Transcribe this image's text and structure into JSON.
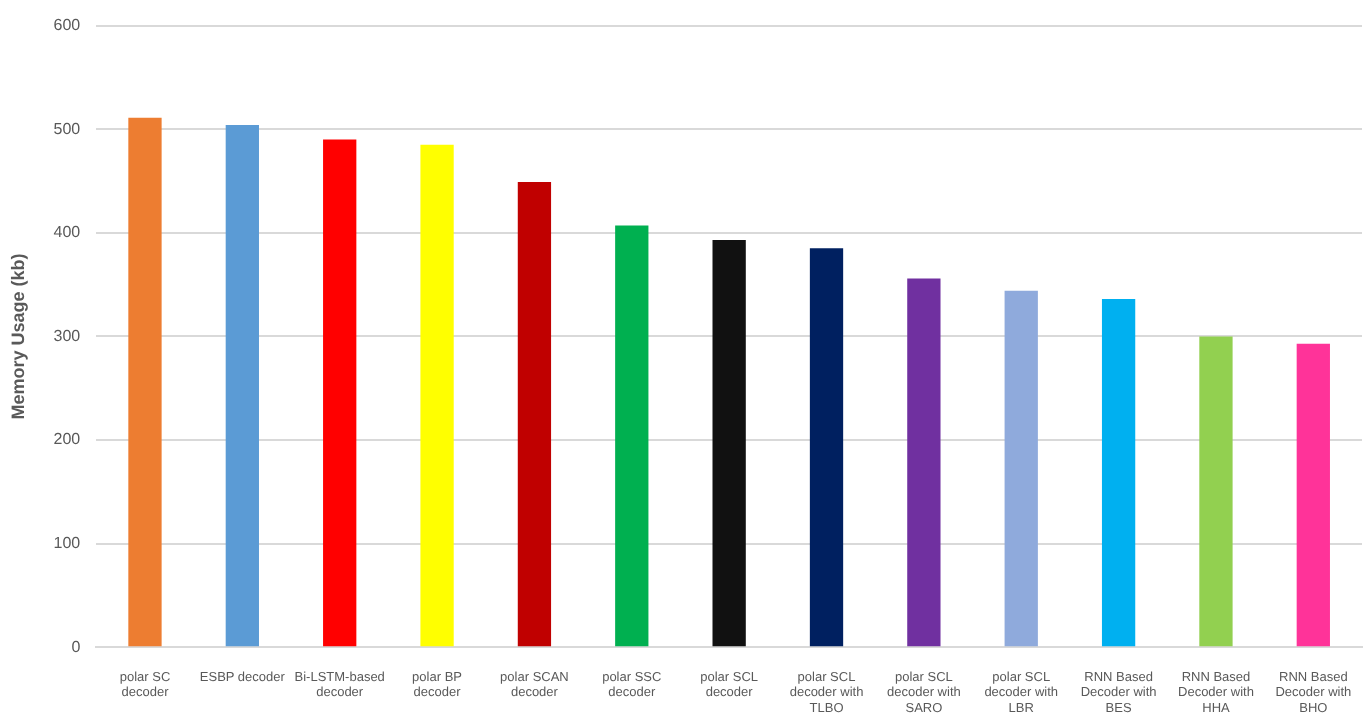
{
  "chart_data": {
    "type": "bar",
    "ylabel": "Memory Usage (kb)",
    "categories": [
      "polar SC decoder",
      "ESBP decoder",
      "Bi-LSTM-based decoder",
      "polar BP decoder",
      "polar SCAN decoder",
      "polar SSC decoder",
      "polar SCL decoder",
      "polar SCL decoder with TLBO",
      "polar SCL decoder with SARO",
      "polar SCL decoder with LBR",
      "RNN Based Decoder with BES",
      "RNN Based Decoder with HHA",
      "RNN Based Decoder with BHO"
    ],
    "values": [
      511,
      504,
      490,
      485,
      449,
      407,
      393,
      385,
      356,
      344,
      336,
      300,
      293
    ],
    "colors": [
      "#ed7d31",
      "#5b9bd5",
      "#ff0000",
      "#ffff00",
      "#c00000",
      "#00b050",
      "#111111",
      "#002060",
      "#7030a0",
      "#8faadc",
      "#00b0f0",
      "#92d050",
      "#ff3399"
    ],
    "ylim": [
      0,
      600
    ],
    "yticks": [
      0,
      100,
      200,
      300,
      400,
      500,
      600
    ],
    "grid": "y"
  }
}
